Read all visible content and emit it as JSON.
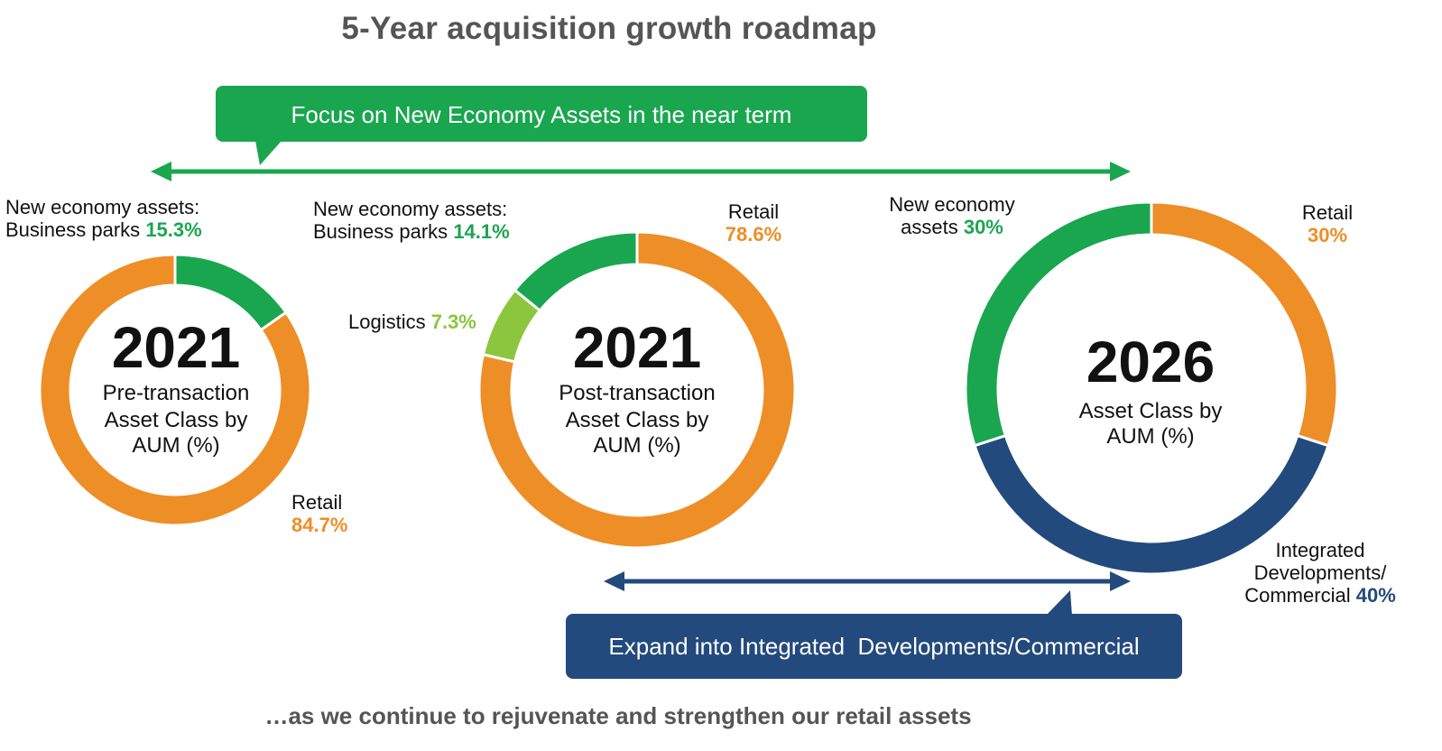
{
  "title": "5-Year acquisition growth roadmap",
  "footer": "…as we continue to rejuvenate and strengthen our retail assets",
  "top_callout": "Focus on New Economy Assets in the near term",
  "bottom_callout": "Expand into Integrated  Developments/Commercial",
  "colors": {
    "green": "#1aa64f",
    "light_green": "#8cc63e",
    "orange": "#ee8e26",
    "navy": "#234a7c",
    "title_gray": "#555555"
  },
  "chart_data": [
    {
      "type": "pie",
      "year": "2021",
      "subtitle_lines": [
        "Pre-transaction",
        "Asset Class by",
        "AUM (%)"
      ],
      "slices": [
        {
          "name": "New economy assets: Business parks",
          "label_lines": [
            "New economy assets:",
            "Business parks"
          ],
          "value": 15.3,
          "value_text": "15.3%",
          "color": "#1aa64f"
        },
        {
          "name": "Retail",
          "label_lines": [
            "Retail"
          ],
          "value": 84.7,
          "value_text": "84.7%",
          "color": "#ee8e26"
        }
      ]
    },
    {
      "type": "pie",
      "year": "2021",
      "subtitle_lines": [
        "Post-transaction",
        "Asset Class by",
        "AUM (%)"
      ],
      "slices": [
        {
          "name": "Retail",
          "label_lines": [
            "Retail"
          ],
          "value": 78.6,
          "value_text": "78.6%",
          "color": "#ee8e26"
        },
        {
          "name": "Logistics",
          "label_lines": [
            "Logistics"
          ],
          "value": 7.3,
          "value_text": "7.3%",
          "color": "#8cc63e"
        },
        {
          "name": "New economy assets: Business parks",
          "label_lines": [
            "New economy assets:",
            "Business parks"
          ],
          "value": 14.1,
          "value_text": "14.1%",
          "color": "#1aa64f"
        }
      ]
    },
    {
      "type": "pie",
      "year": "2026",
      "subtitle_lines": [
        "Asset Class by",
        "AUM (%)"
      ],
      "slices": [
        {
          "name": "Retail",
          "label_lines": [
            "Retail"
          ],
          "value": 30,
          "value_text": "30%",
          "color": "#ee8e26"
        },
        {
          "name": "Integrated Developments/Commercial",
          "label_lines": [
            "Integrated",
            "Developments/",
            "Commercial"
          ],
          "value": 40,
          "value_text": "40%",
          "color": "#234a7c"
        },
        {
          "name": "New economy assets",
          "label_lines": [
            "New economy",
            "assets"
          ],
          "value": 30,
          "value_text": "30%",
          "color": "#1aa64f"
        }
      ]
    }
  ]
}
